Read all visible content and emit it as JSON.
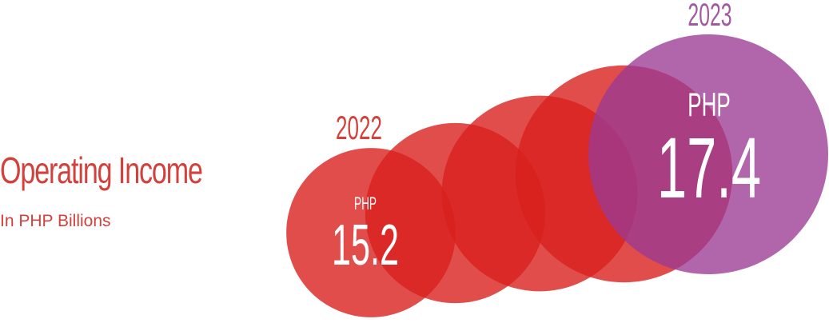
{
  "title": "Operating Income",
  "subtitle": "In PHP Billions",
  "colors": {
    "title": "#d2413c",
    "circle_fill": "#d8201d",
    "highlight_fill": "#9b3a93",
    "label_2022": "#d2413c",
    "label_2023": "#a05aa0"
  },
  "chart_data": {
    "type": "bubble",
    "title": "Operating Income",
    "subtitle": "In PHP Billions",
    "points": [
      {
        "year": "2022",
        "currency": "PHP",
        "value": 15.2
      },
      {
        "year": "2023",
        "currency": "PHP",
        "value": 17.4
      }
    ],
    "intermediate_circles": 3
  }
}
